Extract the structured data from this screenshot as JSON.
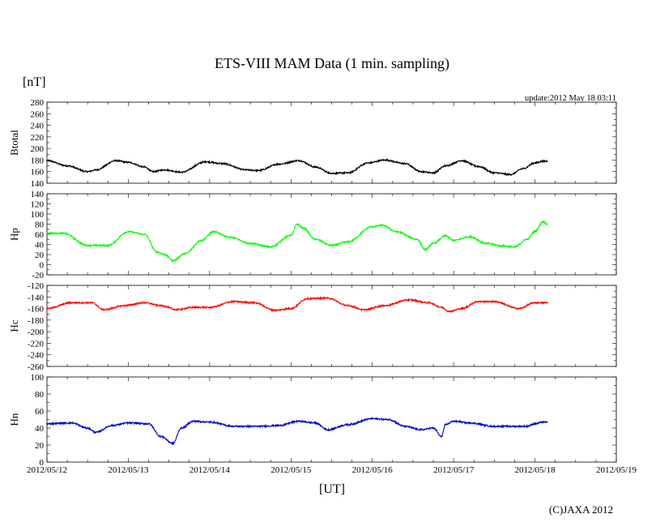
{
  "title": "ETS-VIII MAM Data (1 min. sampling)",
  "unit_label": "[nT]",
  "update_text": "update:2012 May 18 03:11",
  "xaxis_label": "[UT]",
  "copyright": "(C)JAXA 2012",
  "x_ticks": [
    "2012/05/12",
    "2012/05/13",
    "2012/05/14",
    "2012/05/15",
    "2012/05/16",
    "2012/05/17",
    "2012/05/18",
    "2012/05/19"
  ],
  "chart_data": [
    {
      "type": "line",
      "name": "Btotal",
      "ylabel": "Btotal",
      "color": "#000000",
      "ylim": [
        140,
        280
      ],
      "yticks": [
        140,
        160,
        180,
        200,
        220,
        240,
        260,
        280
      ],
      "xlim": [
        "2012/05/12 00:00",
        "2012/05/19 00:00"
      ],
      "x_days": [
        0,
        0.25,
        0.5,
        0.6,
        0.85,
        1.0,
        1.2,
        1.3,
        1.45,
        1.65,
        1.95,
        2.15,
        2.45,
        2.6,
        2.85,
        3.1,
        3.3,
        3.5,
        3.7,
        3.95,
        4.15,
        4.4,
        4.6,
        4.75,
        4.9,
        5.1,
        5.3,
        5.5,
        5.7,
        5.85,
        6.0,
        6.1,
        6.15
      ],
      "values": [
        179,
        170,
        160,
        163,
        179,
        176,
        168,
        160,
        163,
        159,
        177,
        174,
        163,
        162,
        173,
        179,
        168,
        157,
        158,
        175,
        180,
        174,
        160,
        158,
        170,
        179,
        169,
        158,
        155,
        165,
        175,
        178,
        178
      ]
    },
    {
      "type": "line",
      "name": "Hp",
      "ylabel": "Hp",
      "color": "#00ff00",
      "ylim": [
        -20,
        140
      ],
      "yticks": [
        -20,
        0,
        20,
        40,
        60,
        80,
        100,
        120,
        140
      ],
      "xlim": [
        "2012/05/12 00:00",
        "2012/05/19 00:00"
      ],
      "x_days": [
        0,
        0.2,
        0.5,
        0.75,
        1.0,
        1.2,
        1.35,
        1.45,
        1.55,
        1.7,
        1.9,
        2.05,
        2.25,
        2.5,
        2.75,
        3.0,
        3.08,
        3.15,
        3.3,
        3.5,
        3.7,
        4.0,
        4.12,
        4.3,
        4.55,
        4.65,
        4.75,
        4.9,
        5.0,
        5.2,
        5.4,
        5.6,
        5.75,
        5.9,
        6.0,
        6.1,
        6.15
      ],
      "values": [
        62,
        62,
        38,
        38,
        65,
        60,
        25,
        20,
        8,
        22,
        48,
        65,
        54,
        42,
        35,
        58,
        80,
        72,
        50,
        38,
        45,
        75,
        78,
        65,
        50,
        30,
        42,
        57,
        48,
        55,
        42,
        37,
        35,
        50,
        66,
        85,
        80
      ]
    },
    {
      "type": "line",
      "name": "Hc",
      "ylabel": "Hc",
      "color": "#ff0000",
      "ylim": [
        -260,
        -120
      ],
      "yticks": [
        -260,
        -240,
        -220,
        -200,
        -180,
        -160,
        -140,
        -120
      ],
      "xlim": [
        "2012/05/12 00:00",
        "2012/05/19 00:00"
      ],
      "x_days": [
        0,
        0.3,
        0.55,
        0.7,
        0.95,
        1.2,
        1.4,
        1.6,
        1.8,
        2.0,
        2.3,
        2.55,
        2.8,
        3.0,
        3.2,
        3.45,
        3.7,
        3.9,
        4.15,
        4.45,
        4.7,
        4.85,
        4.95,
        5.1,
        5.3,
        5.5,
        5.8,
        6.0,
        6.15
      ],
      "values": [
        -160,
        -150,
        -150,
        -162,
        -155,
        -150,
        -155,
        -162,
        -158,
        -158,
        -148,
        -150,
        -163,
        -160,
        -143,
        -142,
        -155,
        -162,
        -155,
        -145,
        -150,
        -158,
        -165,
        -160,
        -148,
        -148,
        -160,
        -150,
        -150
      ]
    },
    {
      "type": "line",
      "name": "Hn",
      "ylabel": "Hn",
      "color": "#0000cc",
      "ylim": [
        0,
        100
      ],
      "yticks": [
        0,
        20,
        40,
        60,
        80,
        100
      ],
      "xlim": [
        "2012/05/12 00:00",
        "2012/05/19 00:00"
      ],
      "x_days": [
        0,
        0.3,
        0.5,
        0.6,
        0.8,
        1.0,
        1.25,
        1.4,
        1.55,
        1.65,
        1.8,
        2.0,
        2.3,
        2.6,
        2.85,
        3.1,
        3.3,
        3.45,
        3.7,
        4.0,
        4.2,
        4.4,
        4.6,
        4.75,
        4.85,
        4.9,
        5.0,
        5.2,
        5.5,
        5.7,
        5.9,
        6.0,
        6.1,
        6.15
      ],
      "values": [
        45,
        46,
        40,
        35,
        43,
        46,
        45,
        30,
        22,
        40,
        48,
        47,
        42,
        42,
        43,
        48,
        46,
        38,
        44,
        51,
        50,
        42,
        38,
        40,
        30,
        44,
        48,
        46,
        42,
        42,
        42,
        45,
        47,
        47
      ]
    }
  ]
}
